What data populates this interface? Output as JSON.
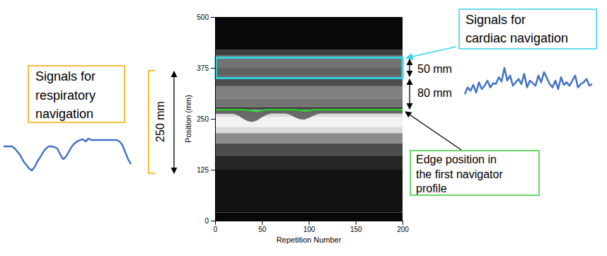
{
  "chart_data": [
    {
      "type": "heatmap",
      "xlabel": "Repetition Number",
      "ylabel": "Position (mm)",
      "xlim": [
        0,
        200
      ],
      "ylim": [
        0,
        500
      ],
      "xticks": [
        0,
        50,
        100,
        150,
        200
      ],
      "yticks": [
        0,
        125,
        250,
        375,
        500
      ],
      "intensity_bands": {
        "edges": [
          0,
          20,
          125,
          160,
          190,
          215,
          230,
          255,
          265,
          272,
          280,
          300,
          330,
          355,
          375,
          405,
          420,
          500
        ],
        "values": [
          0.03,
          0.07,
          0.15,
          0.3,
          0.55,
          0.85,
          0.95,
          0.85,
          0.7,
          0.3,
          0.45,
          0.5,
          0.3,
          0.38,
          0.45,
          0.25,
          0.03
        ]
      },
      "x": [
        0,
        5,
        10,
        15,
        20,
        25,
        30,
        35,
        40,
        45,
        50,
        55,
        60,
        65,
        70,
        75,
        80,
        85,
        90,
        95,
        100,
        105,
        110,
        115,
        120,
        125,
        130,
        135,
        140,
        145,
        150,
        155,
        160,
        165,
        170,
        175,
        180,
        185,
        190,
        195,
        200
      ],
      "series": [
        {
          "type": "line",
          "color": "#22dd22",
          "values": [
            272,
            272,
            272,
            272,
            272,
            272,
            272,
            271,
            269,
            268,
            270,
            272,
            272,
            272,
            272,
            272,
            272,
            272,
            271,
            269,
            270,
            272,
            272,
            272,
            272,
            272,
            272,
            272,
            272,
            272,
            272,
            272,
            272,
            272,
            272,
            272,
            272,
            272,
            272,
            272,
            272
          ]
        },
        {
          "type": "area",
          "color": "#555555",
          "values": [
            262,
            262,
            262,
            262,
            262,
            258,
            250,
            244,
            242,
            246,
            254,
            260,
            263,
            263,
            263,
            263,
            260,
            254,
            249,
            248,
            252,
            258,
            262,
            263,
            263,
            263,
            263,
            263,
            263,
            263,
            263,
            263,
            263,
            263,
            263,
            263,
            263,
            263,
            263,
            263,
            263
          ]
        }
      ],
      "regions": [
        {
          "range": [
            350,
            400
          ],
          "color": "#33d6e6"
        }
      ],
      "annotations": [
        {
          "lines": [
            "Signals for",
            "cardiac navigation"
          ],
          "color": "#33d6e6"
        },
        {
          "lines": [
            "Signals for",
            "respiratory",
            "navigation"
          ],
          "color": "#f0a800"
        },
        {
          "lines": [
            "Edge position in",
            "the first navigator",
            "profile"
          ],
          "color": "#33cc33"
        },
        {
          "lines": [
            "50 mm"
          ]
        },
        {
          "lines": [
            "80 mm"
          ]
        },
        {
          "lines": [
            "250 mm"
          ]
        }
      ]
    },
    {
      "type": "line",
      "tick_labels": false,
      "color": "#4472c4",
      "xlim": [
        0,
        45
      ],
      "ylim": [
        0,
        50
      ],
      "values": [
        38,
        38,
        38,
        38,
        35,
        30,
        25,
        17,
        12,
        7,
        4,
        9,
        17,
        23,
        30,
        35,
        38,
        38,
        37,
        35,
        27,
        20,
        23,
        30,
        37,
        42,
        45,
        47,
        48,
        45,
        49,
        47,
        47,
        47,
        47,
        47,
        47,
        47,
        47,
        47,
        47,
        45,
        40,
        30,
        20,
        13
      ]
    },
    {
      "type": "line",
      "tick_labels": false,
      "color": "#4472c4",
      "xlim": [
        0,
        45
      ],
      "ylim": [
        0,
        50
      ],
      "values": [
        14,
        22,
        18,
        25,
        16,
        28,
        20,
        24,
        30,
        22,
        27,
        26,
        34,
        29,
        45,
        30,
        36,
        24,
        28,
        32,
        26,
        38,
        22,
        30,
        27,
        24,
        36,
        28,
        40,
        33,
        26,
        22,
        30,
        20,
        34,
        25,
        28,
        24,
        30,
        36,
        22,
        26,
        28,
        32,
        24,
        26
      ]
    }
  ]
}
